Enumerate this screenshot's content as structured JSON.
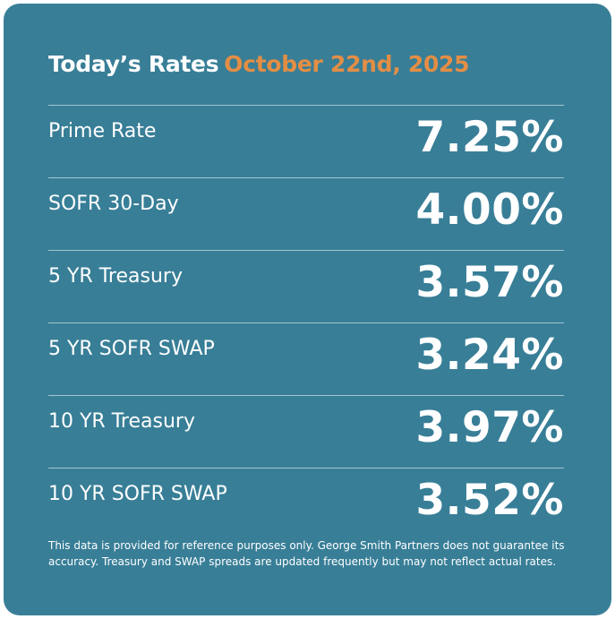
{
  "header": {
    "title": "Today’s Rates",
    "date": "October 22nd, 2025"
  },
  "colors": {
    "background": "#387e97",
    "accent": "#e38e45",
    "text": "#ffffff"
  },
  "rates": [
    {
      "label": "Prime Rate",
      "value": "7.25%"
    },
    {
      "label": "SOFR 30-Day",
      "value": "4.00%"
    },
    {
      "label": "5 YR Treasury",
      "value": "3.57%"
    },
    {
      "label": "5 YR SOFR SWAP",
      "value": "3.24%"
    },
    {
      "label": "10 YR Treasury",
      "value": "3.97%"
    },
    {
      "label": "10 YR SOFR SWAP",
      "value": "3.52%"
    }
  ],
  "disclaimer": "This data is provided for reference purposes only. George Smith Partners does not guarantee its accuracy. Treasury and SWAP spreads are updated frequently but may not reflect actual rates."
}
